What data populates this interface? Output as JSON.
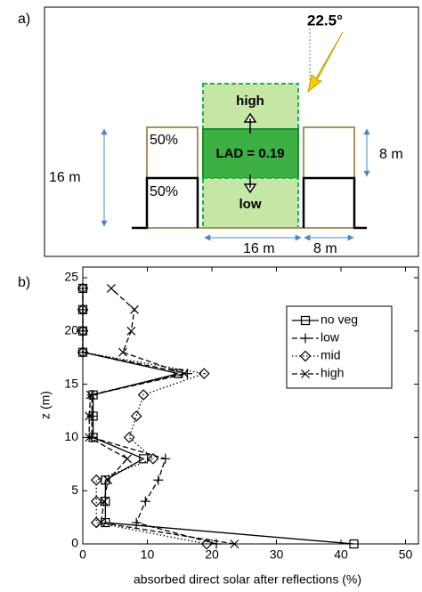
{
  "diagram": {
    "panel_label": "a)",
    "angle": "22.5°",
    "zones": {
      "high": "high",
      "middle": "LAD = 0.19",
      "low": "low"
    },
    "building_fractions": [
      "50%",
      "50%"
    ],
    "dimensions": {
      "height": "16 m",
      "upper_height": "8 m",
      "canyon_width": "16 m",
      "building_width": "8 m"
    }
  },
  "chart_data": {
    "type": "line",
    "panel_label": "b)",
    "xlabel": "absorbed direct solar after reflections (%)",
    "ylabel": "z (m)",
    "y": [
      0,
      2,
      4,
      6,
      8,
      10,
      12,
      14,
      16,
      18,
      20,
      22,
      24
    ],
    "series": [
      {
        "name": "no veg",
        "color": "#000000",
        "marker": "square",
        "dash": "solid",
        "values": [
          42,
          3.5,
          3.5,
          3.5,
          9.4,
          1.6,
          1.6,
          1.6,
          14.8,
          0,
          0,
          0,
          0
        ]
      },
      {
        "name": "low",
        "color": "#000000",
        "marker": "plus",
        "dash": "dashed",
        "values": [
          20.7,
          8.3,
          9.7,
          11.7,
          12.8,
          1.4,
          1.4,
          1.4,
          16.2,
          0,
          0,
          0,
          0
        ]
      },
      {
        "name": "mid",
        "color": "#000000",
        "marker": "diamond",
        "dash": "dotted",
        "values": [
          19.2,
          2.1,
          2.1,
          2.1,
          10.9,
          7.2,
          8.3,
          9.4,
          18.8,
          0,
          0,
          0,
          0
        ]
      },
      {
        "name": "high",
        "color": "#000000",
        "marker": "x",
        "dash": "dashed",
        "values": [
          23.5,
          2.8,
          3.3,
          3.9,
          6.9,
          1.0,
          1.0,
          1.2,
          15.7,
          6.2,
          7.5,
          8.0,
          4.4
        ]
      }
    ],
    "xlim": [
      0,
      52
    ],
    "ylim": [
      0,
      26
    ],
    "xticks": [
      0,
      10,
      20,
      30,
      40,
      50
    ],
    "yticks": [
      0,
      5,
      10,
      15,
      20,
      25
    ],
    "grid": false,
    "legend": "upper right"
  }
}
